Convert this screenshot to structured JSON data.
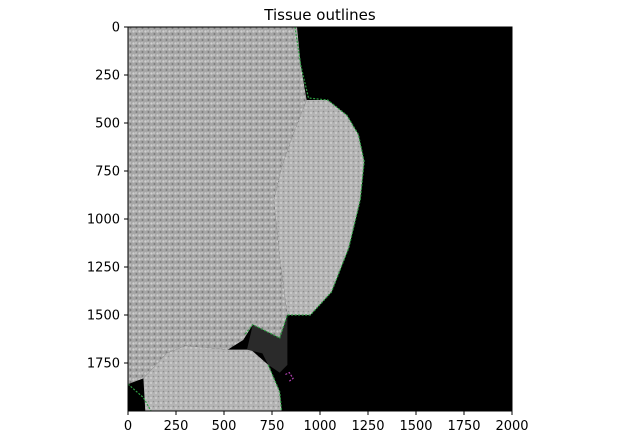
{
  "chart_data": {
    "type": "image",
    "title": "Tissue outlines",
    "xlabel": "",
    "ylabel": "",
    "xlim": [
      0,
      2000
    ],
    "ylim": [
      2000,
      0
    ],
    "xticks": [
      0,
      250,
      500,
      750,
      1000,
      1250,
      1500,
      1750,
      2000
    ],
    "yticks": [
      0,
      250,
      500,
      750,
      1000,
      1250,
      1500,
      1750
    ],
    "grid": false,
    "legend": "none",
    "colors": {
      "tissue": "#a9a9a9",
      "background": "#000000",
      "outline_green": "#2ea043",
      "outline_magenta": "#b040b0"
    },
    "regions": [
      {
        "name": "main-tissue",
        "outline": [
          [
            0,
            0
          ],
          [
            880,
            0
          ],
          [
            900,
            200
          ],
          [
            930,
            380
          ],
          [
            860,
            560
          ],
          [
            800,
            730
          ],
          [
            760,
            900
          ],
          [
            790,
            1200
          ],
          [
            830,
            1500
          ],
          [
            790,
            1620
          ],
          [
            650,
            1550
          ],
          [
            600,
            1630
          ],
          [
            520,
            1680
          ],
          [
            300,
            1660
          ],
          [
            200,
            1700
          ],
          [
            80,
            1830
          ],
          [
            0,
            1860
          ]
        ]
      },
      {
        "name": "lobe-tissue",
        "outline": [
          [
            930,
            380
          ],
          [
            1040,
            380
          ],
          [
            1140,
            460
          ],
          [
            1200,
            560
          ],
          [
            1230,
            700
          ],
          [
            1210,
            900
          ],
          [
            1150,
            1150
          ],
          [
            1060,
            1380
          ],
          [
            950,
            1500
          ],
          [
            830,
            1500
          ],
          [
            790,
            1200
          ],
          [
            760,
            900
          ],
          [
            800,
            730
          ],
          [
            860,
            560
          ]
        ]
      },
      {
        "name": "lower-tissue",
        "outline": [
          [
            80,
            1830
          ],
          [
            200,
            1700
          ],
          [
            300,
            1660
          ],
          [
            520,
            1680
          ],
          [
            640,
            1680
          ],
          [
            730,
            1760
          ],
          [
            790,
            1900
          ],
          [
            800,
            2000
          ],
          [
            90,
            2000
          ]
        ]
      },
      {
        "name": "dark-gap",
        "outline": [
          [
            650,
            1550
          ],
          [
            790,
            1620
          ],
          [
            830,
            1500
          ],
          [
            830,
            1760
          ],
          [
            790,
            1800
          ],
          [
            730,
            1760
          ],
          [
            700,
            1700
          ],
          [
            620,
            1680
          ]
        ]
      }
    ],
    "outlines": [
      {
        "color": "green",
        "points": [
          [
            870,
            0
          ],
          [
            900,
            200
          ],
          [
            940,
            370
          ],
          [
            1040,
            380
          ],
          [
            1140,
            460
          ],
          [
            1200,
            560
          ],
          [
            1230,
            700
          ],
          [
            1210,
            900
          ],
          [
            1150,
            1150
          ],
          [
            1060,
            1380
          ],
          [
            950,
            1500
          ],
          [
            830,
            1500
          ],
          [
            790,
            1620
          ],
          [
            650,
            1550
          ],
          [
            610,
            1600
          ]
        ]
      },
      {
        "color": "green",
        "points": [
          [
            730,
            1760
          ],
          [
            790,
            1900
          ],
          [
            800,
            2000
          ]
        ]
      },
      {
        "color": "green",
        "points": [
          [
            0,
            1860
          ],
          [
            80,
            1930
          ],
          [
            120,
            2000
          ]
        ]
      },
      {
        "color": "magenta",
        "points": [
          [
            820,
            1810
          ],
          [
            840,
            1800
          ],
          [
            860,
            1830
          ],
          [
            840,
            1845
          ]
        ]
      }
    ]
  }
}
